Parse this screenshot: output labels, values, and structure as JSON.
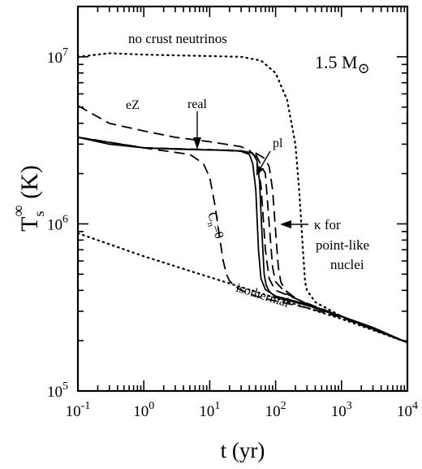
{
  "chart_data": {
    "type": "line",
    "xscale": "log",
    "yscale": "log",
    "xlim": [
      0.1,
      10000
    ],
    "ylim": [
      100000,
      20000000
    ],
    "xlabel": "t (yr)",
    "ylabel": "Ts∞ (K)",
    "ylabel_parts": {
      "main": "T",
      "sub": "s",
      "sup": "∞",
      "unit": "(K)"
    },
    "x_ticks": [
      {
        "value": 0.1,
        "base": "10",
        "exp": "-1"
      },
      {
        "value": 1,
        "base": "10",
        "exp": "0"
      },
      {
        "value": 10,
        "base": "10",
        "exp": "1"
      },
      {
        "value": 100,
        "base": "10",
        "exp": "2"
      },
      {
        "value": 1000,
        "base": "10",
        "exp": "3"
      },
      {
        "value": 10000,
        "base": "10",
        "exp": "4"
      }
    ],
    "y_ticks": [
      {
        "value": 100000,
        "base": "10",
        "exp": "5"
      },
      {
        "value": 1000000,
        "base": "10",
        "exp": "6"
      },
      {
        "value": 10000000,
        "base": "10",
        "exp": "7"
      }
    ],
    "mass_label": {
      "value": "1.5 M",
      "symbol": "⊙"
    },
    "annotations": [
      {
        "text": "no crust neutrinos"
      },
      {
        "text": "eZ"
      },
      {
        "text": "real"
      },
      {
        "text": "pl"
      },
      {
        "text": "isothermal"
      },
      {
        "text": "κ  for"
      },
      {
        "text": "point-like"
      },
      {
        "text": "nuclei"
      },
      {
        "text": "C",
        "sub": "n",
        "suffix": "=0"
      }
    ],
    "series": [
      {
        "style": "solid",
        "color": "#000000",
        "x": [
          0.1,
          0.3,
          1,
          3,
          10,
          20,
          30,
          40,
          45,
          50,
          55,
          60,
          70,
          100,
          300,
          1000,
          3000,
          10000
        ],
        "y": [
          3300000,
          3000000,
          2850000,
          2800000,
          2770000,
          2760000,
          2720000,
          2600000,
          2300000,
          1600000,
          700000,
          470000,
          405000,
          370000,
          330000,
          280000,
          240000,
          195000
        ]
      },
      {
        "style": "solid",
        "color": "#000000",
        "x": [
          0.1,
          1,
          10,
          30,
          45,
          52,
          57,
          62,
          67,
          72,
          80,
          100,
          300,
          1000,
          10000
        ],
        "y": [
          3300000,
          2850000,
          2770000,
          2740000,
          2650000,
          2400000,
          1800000,
          900000,
          500000,
          430000,
          395000,
          365000,
          325000,
          278000,
          195000
        ]
      },
      {
        "style": "dashed",
        "color": "#000000",
        "x": [
          0.1,
          0.3,
          1,
          3,
          10,
          30,
          40,
          50,
          60,
          70,
          80,
          90,
          100,
          150,
          300,
          1000,
          10000
        ],
        "y": [
          5100000,
          4000000,
          3600000,
          3300000,
          3100000,
          2900000,
          2750000,
          2500000,
          1700000,
          700000,
          470000,
          430000,
          400000,
          375000,
          335000,
          280000,
          195000
        ]
      },
      {
        "style": "dashed",
        "color": "#000000",
        "x": [
          0.1,
          1,
          5,
          8,
          10,
          12,
          14,
          16,
          18,
          20,
          25,
          30,
          50,
          100,
          300,
          1000,
          10000
        ],
        "y": [
          3300000,
          2850000,
          2600000,
          2300000,
          1900000,
          1300000,
          850000,
          600000,
          500000,
          455000,
          420000,
          400000,
          370000,
          345000,
          315000,
          275000,
          195000
        ]
      },
      {
        "style": "dashed",
        "color": "#000000",
        "x": [
          0.1,
          1,
          10,
          30,
          50,
          70,
          80,
          90,
          100,
          110,
          120,
          140,
          200,
          300,
          1000,
          10000
        ],
        "y": [
          3300000,
          2850000,
          2780000,
          2720000,
          2650000,
          2450000,
          2200000,
          1600000,
          900000,
          550000,
          450000,
          400000,
          360000,
          330000,
          278000,
          195000
        ]
      },
      {
        "style": "dashed",
        "color": "#000000",
        "x": [
          0.1,
          1,
          10,
          30,
          50,
          70,
          80,
          90,
          100,
          150,
          300,
          1000,
          10000
        ],
        "y": [
          3300000,
          2850000,
          2780000,
          2730000,
          2600000,
          2000000,
          1000000,
          550000,
          450000,
          380000,
          332000,
          278000,
          195000
        ]
      },
      {
        "style": "dotted",
        "color": "#000000",
        "x": [
          0.1,
          0.3,
          1,
          3,
          10,
          30,
          60,
          100,
          150,
          200,
          230,
          260,
          280,
          300,
          400,
          1000,
          10000
        ],
        "y": [
          10000000,
          10500000,
          10300000,
          10200000,
          10100000,
          10000000,
          9500000,
          8000000,
          5500000,
          3000000,
          1500000,
          700000,
          450000,
          400000,
          340000,
          280000,
          195000
        ]
      },
      {
        "style": "dotted",
        "color": "#000000",
        "x": [
          0.1,
          1,
          10,
          100,
          1000,
          10000
        ],
        "y": [
          880000,
          640000,
          480000,
          360000,
          270000,
          195000
        ]
      }
    ]
  }
}
